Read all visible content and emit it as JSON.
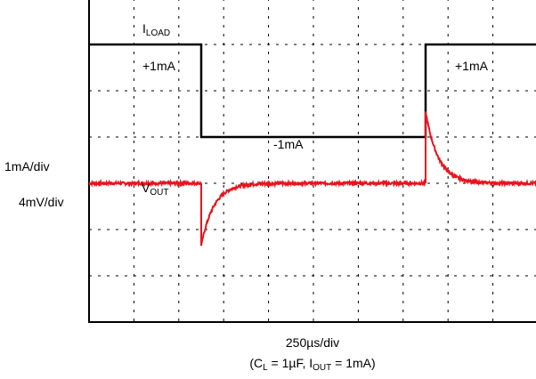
{
  "chart_data": {
    "type": "line",
    "title": "",
    "grid": true,
    "grid_divisions": {
      "x": 10,
      "y": 7
    },
    "axis_labels": {
      "x_scale": "250µs/div",
      "y_scale_load": "1mA/div",
      "y_scale_vout": "4mV/div",
      "conditions": {
        "open": "(C",
        "cl_sub": "L",
        "mid": " = 1µF, I",
        "iout_sub": "OUT",
        "close": " = 1mA)"
      }
    },
    "colors": {
      "load": "#000000",
      "vout": "#e8141c",
      "grid": "#000000"
    },
    "series": [
      {
        "name_main": "I",
        "name_sub": "LOAD",
        "unit_per_div": "1mA/div",
        "points_div": [
          [
            0,
            6.0
          ],
          [
            2.5,
            6.0
          ],
          [
            2.5,
            4.0
          ],
          [
            7.5,
            4.0
          ],
          [
            7.5,
            6.0
          ],
          [
            10,
            6.0
          ]
        ]
      },
      {
        "name_main": "V",
        "name_sub": "OUT",
        "unit_per_div": "4mV/div",
        "baseline_div": 3.0,
        "steps": [
          {
            "t_div": 2.5,
            "peak_div": -1.35
          },
          {
            "t_div": 7.5,
            "peak_div": 1.55
          }
        ]
      }
    ],
    "annotations": [
      {
        "id": "load-high-left",
        "text": "+1mA"
      },
      {
        "id": "load-high-right",
        "text": "+1mA"
      },
      {
        "id": "load-low",
        "text": "-1mA"
      }
    ]
  }
}
